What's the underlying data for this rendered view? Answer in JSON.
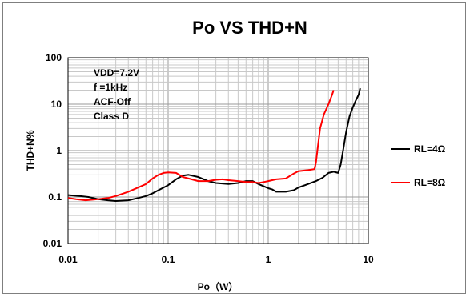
{
  "chart_data": {
    "type": "line",
    "title": "Po VS THD+N",
    "xlabel": "Po（W）",
    "ylabel": "THD+N%",
    "x_scale": "log",
    "y_scale": "log",
    "xlim": [
      0.01,
      10
    ],
    "ylim": [
      0.01,
      100
    ],
    "x_ticks": [
      "0.01",
      "0.1",
      "1",
      "10"
    ],
    "y_ticks": [
      "0.01",
      "0.1",
      "1",
      "10",
      "100"
    ],
    "grid": true,
    "legend_position": "right",
    "annotations": [
      "VDD=7.2V",
      "f =1kHz",
      "ACF-Off",
      "Class D"
    ],
    "series": [
      {
        "name": "RL=4Ω",
        "color": "#000000",
        "points": [
          [
            0.01,
            0.11
          ],
          [
            0.013,
            0.105
          ],
          [
            0.016,
            0.1
          ],
          [
            0.02,
            0.09
          ],
          [
            0.025,
            0.085
          ],
          [
            0.03,
            0.082
          ],
          [
            0.04,
            0.085
          ],
          [
            0.05,
            0.095
          ],
          [
            0.06,
            0.105
          ],
          [
            0.07,
            0.12
          ],
          [
            0.08,
            0.14
          ],
          [
            0.1,
            0.18
          ],
          [
            0.12,
            0.24
          ],
          [
            0.14,
            0.29
          ],
          [
            0.16,
            0.3
          ],
          [
            0.2,
            0.27
          ],
          [
            0.25,
            0.22
          ],
          [
            0.3,
            0.2
          ],
          [
            0.4,
            0.19
          ],
          [
            0.5,
            0.2
          ],
          [
            0.6,
            0.22
          ],
          [
            0.7,
            0.22
          ],
          [
            0.8,
            0.19
          ],
          [
            0.9,
            0.17
          ],
          [
            1.0,
            0.155
          ],
          [
            1.1,
            0.145
          ],
          [
            1.2,
            0.13
          ],
          [
            1.5,
            0.13
          ],
          [
            1.8,
            0.14
          ],
          [
            2.0,
            0.16
          ],
          [
            2.5,
            0.19
          ],
          [
            3.0,
            0.22
          ],
          [
            3.5,
            0.26
          ],
          [
            4.0,
            0.33
          ],
          [
            4.5,
            0.35
          ],
          [
            5.0,
            0.33
          ],
          [
            5.3,
            0.5
          ],
          [
            5.6,
            1.0
          ],
          [
            6.0,
            2.5
          ],
          [
            6.5,
            5.5
          ],
          [
            7.0,
            8.5
          ],
          [
            7.5,
            12
          ],
          [
            8.0,
            16
          ],
          [
            8.3,
            22
          ]
        ]
      },
      {
        "name": "RL=8Ω",
        "color": "#ff0000",
        "points": [
          [
            0.01,
            0.095
          ],
          [
            0.012,
            0.09
          ],
          [
            0.015,
            0.085
          ],
          [
            0.02,
            0.09
          ],
          [
            0.025,
            0.095
          ],
          [
            0.03,
            0.105
          ],
          [
            0.04,
            0.13
          ],
          [
            0.05,
            0.16
          ],
          [
            0.06,
            0.19
          ],
          [
            0.07,
            0.25
          ],
          [
            0.08,
            0.3
          ],
          [
            0.09,
            0.33
          ],
          [
            0.1,
            0.34
          ],
          [
            0.12,
            0.33
          ],
          [
            0.14,
            0.27
          ],
          [
            0.16,
            0.25
          ],
          [
            0.2,
            0.22
          ],
          [
            0.25,
            0.22
          ],
          [
            0.3,
            0.235
          ],
          [
            0.35,
            0.24
          ],
          [
            0.4,
            0.23
          ],
          [
            0.5,
            0.22
          ],
          [
            0.6,
            0.21
          ],
          [
            0.7,
            0.21
          ],
          [
            0.8,
            0.2
          ],
          [
            0.9,
            0.21
          ],
          [
            1.0,
            0.22
          ],
          [
            1.2,
            0.24
          ],
          [
            1.5,
            0.25
          ],
          [
            1.8,
            0.32
          ],
          [
            2.0,
            0.36
          ],
          [
            2.5,
            0.38
          ],
          [
            2.9,
            0.4
          ],
          [
            3.0,
            0.55
          ],
          [
            3.1,
            1.0
          ],
          [
            3.3,
            3.0
          ],
          [
            3.6,
            6.0
          ],
          [
            4.0,
            10
          ],
          [
            4.3,
            15
          ],
          [
            4.5,
            20
          ]
        ]
      }
    ]
  }
}
